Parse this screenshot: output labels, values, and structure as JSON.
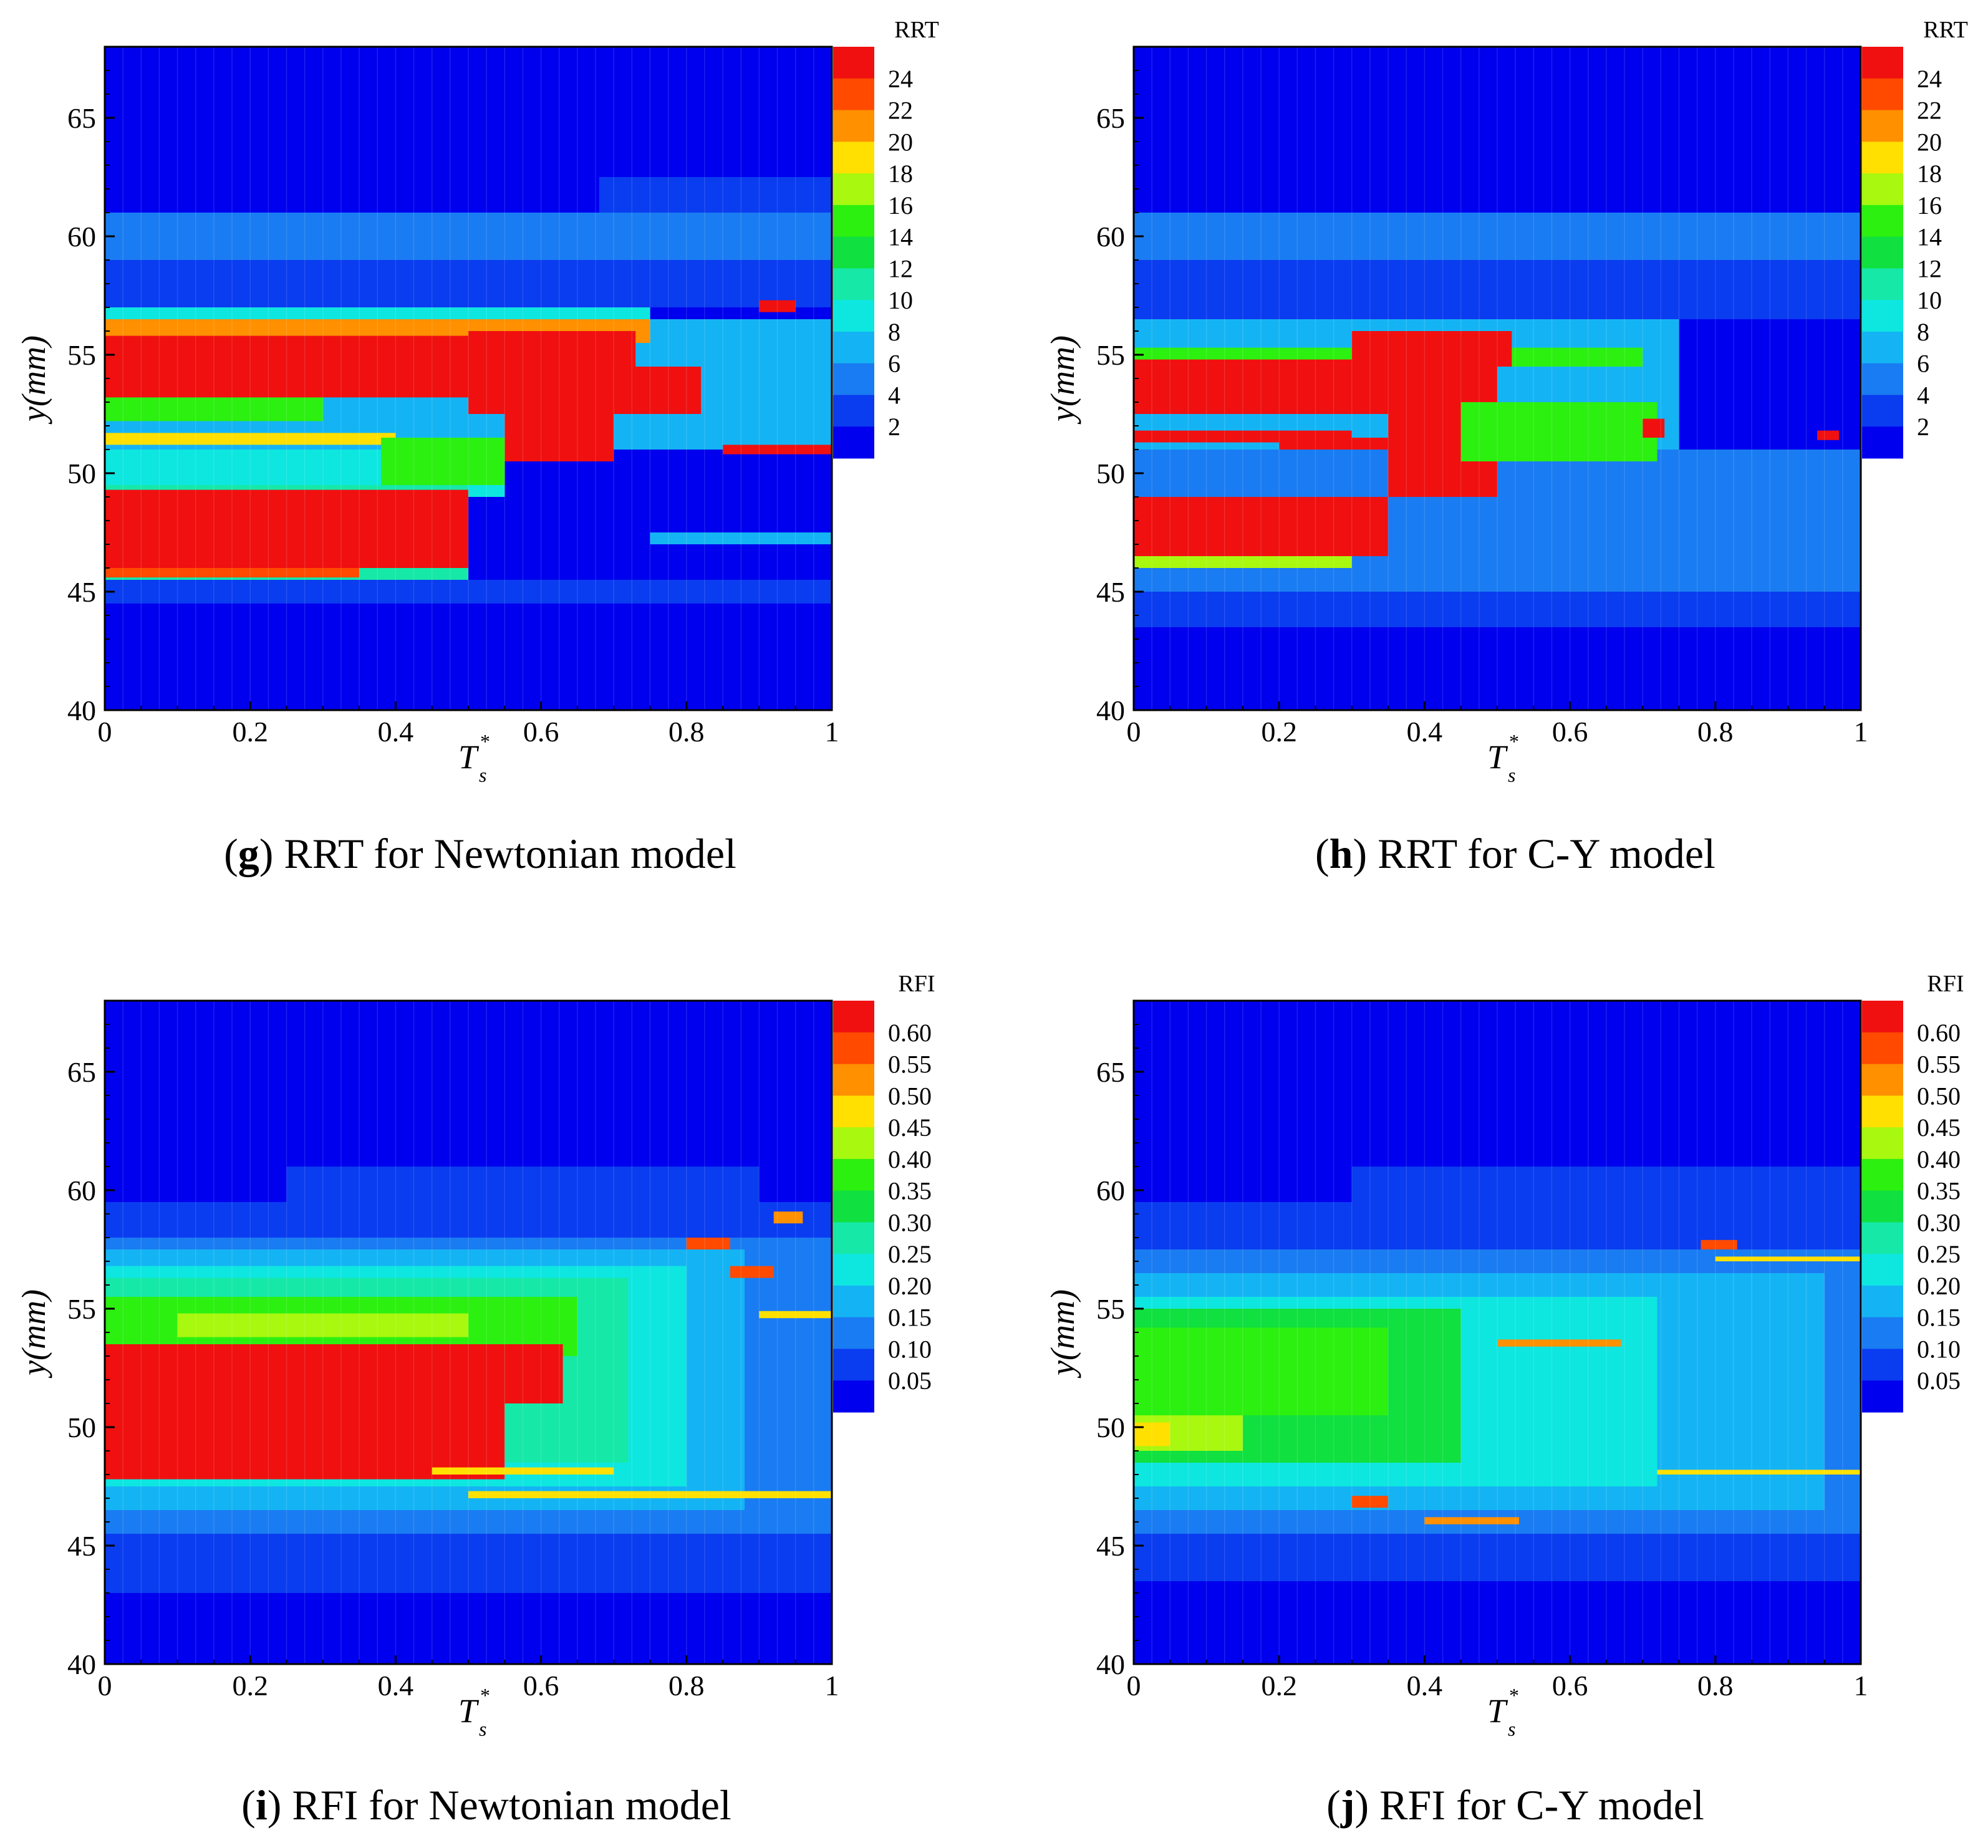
{
  "figure": {
    "panels": [
      {
        "id": "g",
        "caption_letter": "g",
        "caption_text": "RRT for Newtonian model",
        "colorbar_title": "RRT",
        "colorbar_labels": [
          "24",
          "22",
          "20",
          "18",
          "16",
          "14",
          "12",
          "10",
          "8",
          "6",
          "4",
          "2"
        ],
        "xlabel_main": "T",
        "xlabel_sup": "*",
        "xlabel_sub": "s",
        "ylabel": "y(mm)",
        "x_tick_labels": [
          "0",
          "0.2",
          "0.4",
          "0.6",
          "0.8",
          "1"
        ],
        "y_tick_labels": [
          "40",
          "45",
          "50",
          "55",
          "60",
          "65"
        ]
      },
      {
        "id": "h",
        "caption_letter": "h",
        "caption_text": "RRT for C-Y model",
        "colorbar_title": "RRT",
        "colorbar_labels": [
          "24",
          "22",
          "20",
          "18",
          "16",
          "14",
          "12",
          "10",
          "8",
          "6",
          "4",
          "2"
        ],
        "xlabel_main": "T",
        "xlabel_sup": "*",
        "xlabel_sub": "s",
        "ylabel": "y(mm)",
        "x_tick_labels": [
          "0",
          "0.2",
          "0.4",
          "0.6",
          "0.8",
          "1"
        ],
        "y_tick_labels": [
          "40",
          "45",
          "50",
          "55",
          "60",
          "65"
        ]
      },
      {
        "id": "i",
        "caption_letter": "i",
        "caption_text": "RFI for Newtonian model",
        "colorbar_title": "RFI",
        "colorbar_labels": [
          "0.60",
          "0.55",
          "0.50",
          "0.45",
          "0.40",
          "0.35",
          "0.30",
          "0.25",
          "0.20",
          "0.15",
          "0.10",
          "0.05"
        ],
        "xlabel_main": "T",
        "xlabel_sup": "*",
        "xlabel_sub": "s",
        "ylabel": "y(mm)",
        "x_tick_labels": [
          "0",
          "0.2",
          "0.4",
          "0.6",
          "0.8",
          "1"
        ],
        "y_tick_labels": [
          "40",
          "45",
          "50",
          "55",
          "60",
          "65"
        ]
      },
      {
        "id": "j",
        "caption_letter": "j",
        "caption_text": "RFI for C-Y model",
        "colorbar_title": "RFI",
        "colorbar_labels": [
          "0.60",
          "0.55",
          "0.50",
          "0.45",
          "0.40",
          "0.35",
          "0.30",
          "0.25",
          "0.20",
          "0.15",
          "0.10",
          "0.05"
        ],
        "xlabel_main": "T",
        "xlabel_sup": "*",
        "xlabel_sub": "s",
        "ylabel": "y(mm)",
        "x_tick_labels": [
          "0",
          "0.2",
          "0.4",
          "0.6",
          "0.8",
          "1"
        ],
        "y_tick_labels": [
          "40",
          "45",
          "50",
          "55",
          "60",
          "65"
        ]
      }
    ]
  },
  "colormap": [
    "#0000ee",
    "#0a3cf0",
    "#1a7cf2",
    "#14b4f4",
    "#0ee6e0",
    "#16e8a8",
    "#10e040",
    "#2cf010",
    "#a8f810",
    "#ffe000",
    "#ff9000",
    "#ff4a00",
    "#f01010"
  ],
  "chart_data": [
    {
      "panel": "g",
      "type": "heatmap",
      "title": "RRT for Newtonian model",
      "xlabel": "T*s",
      "ylabel": "y(mm)",
      "xlim": [
        0,
        1
      ],
      "ylim": [
        40,
        68
      ],
      "x_ticks": [
        0,
        0.2,
        0.4,
        0.6,
        0.8,
        1
      ],
      "y_ticks": [
        40,
        45,
        50,
        55,
        60,
        65
      ],
      "colorbar": {
        "title": "RRT",
        "levels": [
          2,
          4,
          6,
          8,
          10,
          12,
          14,
          16,
          18,
          20,
          22,
          24
        ]
      },
      "background_level": 0,
      "regions": [
        {
          "x0": 0,
          "x1": 1,
          "y0": 59,
          "y1": 61,
          "level": 2
        },
        {
          "x0": 0.68,
          "x1": 1,
          "y0": 61,
          "y1": 62.5,
          "level": 1
        },
        {
          "x0": 0,
          "x1": 1,
          "y0": 57,
          "y1": 59,
          "level": 1
        },
        {
          "x0": 0,
          "x1": 0.75,
          "y0": 56.2,
          "y1": 57,
          "level": 4
        },
        {
          "x0": 0,
          "x1": 1,
          "y0": 51,
          "y1": 56.5,
          "level": 3
        },
        {
          "x0": 0,
          "x1": 0.55,
          "y0": 49,
          "y1": 51,
          "level": 4
        },
        {
          "x0": 0,
          "x1": 0.5,
          "y0": 45.3,
          "y1": 49.5,
          "level": 5
        },
        {
          "x0": 0,
          "x1": 1,
          "y0": 44.5,
          "y1": 45.5,
          "level": 1
        },
        {
          "x0": 0,
          "x1": 0.3,
          "y0": 52.2,
          "y1": 53.2,
          "level": 7
        },
        {
          "x0": 0,
          "x1": 0.4,
          "y0": 51.2,
          "y1": 51.7,
          "level": 9
        },
        {
          "x0": 0,
          "x1": 0.75,
          "y0": 55.5,
          "y1": 56.5,
          "level": 10
        },
        {
          "x0": 0,
          "x1": 0.7,
          "y0": 53.2,
          "y1": 55.8,
          "level": 12
        },
        {
          "x0": 0.5,
          "x1": 0.73,
          "y0": 52.5,
          "y1": 56,
          "level": 12
        },
        {
          "x0": 0.55,
          "x1": 0.7,
          "y0": 50.5,
          "y1": 53.2,
          "level": 12
        },
        {
          "x0": 0.7,
          "x1": 0.82,
          "y0": 52.5,
          "y1": 54.5,
          "level": 12
        },
        {
          "x0": 0.38,
          "x1": 0.55,
          "y0": 49.5,
          "y1": 51.5,
          "level": 7
        },
        {
          "x0": 0,
          "x1": 0.5,
          "y0": 46,
          "y1": 49.3,
          "level": 12
        },
        {
          "x0": 0,
          "x1": 0.35,
          "y0": 45.6,
          "y1": 46,
          "level": 11
        },
        {
          "x0": 0.9,
          "x1": 0.95,
          "y0": 56.8,
          "y1": 57.3,
          "level": 12
        },
        {
          "x0": 0.85,
          "x1": 1,
          "y0": 50.8,
          "y1": 51.2,
          "level": 12
        },
        {
          "x0": 0.75,
          "x1": 1,
          "y0": 47,
          "y1": 47.5,
          "level": 3
        }
      ]
    },
    {
      "panel": "h",
      "type": "heatmap",
      "title": "RRT for C-Y model",
      "xlabel": "T*s",
      "ylabel": "y(mm)",
      "xlim": [
        0,
        1
      ],
      "ylim": [
        40,
        68
      ],
      "x_ticks": [
        0,
        0.2,
        0.4,
        0.6,
        0.8,
        1
      ],
      "y_ticks": [
        40,
        45,
        50,
        55,
        60,
        65
      ],
      "colorbar": {
        "title": "RRT",
        "levels": [
          2,
          4,
          6,
          8,
          10,
          12,
          14,
          16,
          18,
          20,
          22,
          24
        ]
      },
      "background_level": 0,
      "regions": [
        {
          "x0": 0,
          "x1": 1,
          "y0": 59,
          "y1": 61,
          "level": 2
        },
        {
          "x0": 0,
          "x1": 1,
          "y0": 56.5,
          "y1": 59,
          "level": 1
        },
        {
          "x0": 0,
          "x1": 0.75,
          "y0": 51,
          "y1": 56.5,
          "level": 3
        },
        {
          "x0": 0,
          "x1": 1,
          "y0": 45,
          "y1": 51,
          "level": 2
        },
        {
          "x0": 0,
          "x1": 1,
          "y0": 43.5,
          "y1": 45,
          "level": 1
        },
        {
          "x0": 0,
          "x1": 0.7,
          "y0": 54.5,
          "y1": 55.3,
          "level": 7
        },
        {
          "x0": 0,
          "x1": 0.5,
          "y0": 52.5,
          "y1": 54.8,
          "level": 12
        },
        {
          "x0": 0.3,
          "x1": 0.52,
          "y0": 54.5,
          "y1": 56,
          "level": 12
        },
        {
          "x0": 0.35,
          "x1": 0.5,
          "y0": 49,
          "y1": 53,
          "level": 12
        },
        {
          "x0": 0.45,
          "x1": 0.72,
          "y0": 50.5,
          "y1": 53,
          "level": 7
        },
        {
          "x0": 0.2,
          "x1": 0.35,
          "y0": 51,
          "y1": 51.5,
          "level": 12
        },
        {
          "x0": 0,
          "x1": 0.3,
          "y0": 51.3,
          "y1": 51.8,
          "level": 12
        },
        {
          "x0": 0,
          "x1": 0.35,
          "y0": 46.5,
          "y1": 49,
          "level": 12
        },
        {
          "x0": 0,
          "x1": 0.3,
          "y0": 46,
          "y1": 46.5,
          "level": 8
        },
        {
          "x0": 0.7,
          "x1": 0.73,
          "y0": 51.5,
          "y1": 52.3,
          "level": 12
        },
        {
          "x0": 0.94,
          "x1": 0.97,
          "y0": 51.4,
          "y1": 51.8,
          "level": 12
        }
      ]
    },
    {
      "panel": "i",
      "type": "heatmap",
      "title": "RFI for Newtonian model",
      "xlabel": "T*s",
      "ylabel": "y(mm)",
      "xlim": [
        0,
        1
      ],
      "ylim": [
        40,
        68
      ],
      "x_ticks": [
        0,
        0.2,
        0.4,
        0.6,
        0.8,
        1
      ],
      "y_ticks": [
        40,
        45,
        50,
        55,
        60,
        65
      ],
      "colorbar": {
        "title": "RFI",
        "levels": [
          0.05,
          0.1,
          0.15,
          0.2,
          0.25,
          0.3,
          0.35,
          0.4,
          0.45,
          0.5,
          0.55,
          0.6
        ]
      },
      "background_level": 0,
      "regions": [
        {
          "x0": 0,
          "x1": 1,
          "y0": 43,
          "y1": 59.5,
          "level": 1
        },
        {
          "x0": 0.25,
          "x1": 0.9,
          "y0": 59,
          "y1": 61,
          "level": 1
        },
        {
          "x0": 0,
          "x1": 1,
          "y0": 45.5,
          "y1": 58,
          "level": 2
        },
        {
          "x0": 0,
          "x1": 0.88,
          "y0": 46.5,
          "y1": 57.5,
          "level": 3
        },
        {
          "x0": 0,
          "x1": 0.8,
          "y0": 47.5,
          "y1": 56.8,
          "level": 4
        },
        {
          "x0": 0,
          "x1": 0.72,
          "y0": 48.5,
          "y1": 56.3,
          "level": 5
        },
        {
          "x0": 0,
          "x1": 0.65,
          "y0": 53,
          "y1": 55.5,
          "level": 7
        },
        {
          "x0": 0.1,
          "x1": 0.5,
          "y0": 53.8,
          "y1": 54.8,
          "level": 8
        },
        {
          "x0": 0,
          "x1": 0.55,
          "y0": 47.8,
          "y1": 53.5,
          "level": 12
        },
        {
          "x0": 0.55,
          "x1": 0.63,
          "y0": 51,
          "y1": 53.5,
          "level": 12
        },
        {
          "x0": 0.45,
          "x1": 0.7,
          "y0": 48,
          "y1": 48.3,
          "level": 9
        },
        {
          "x0": 0.5,
          "x1": 1,
          "y0": 47,
          "y1": 47.3,
          "level": 9
        },
        {
          "x0": 0.8,
          "x1": 0.86,
          "y0": 57.5,
          "y1": 58,
          "level": 11
        },
        {
          "x0": 0.86,
          "x1": 0.92,
          "y0": 56.3,
          "y1": 56.8,
          "level": 11
        },
        {
          "x0": 0.92,
          "x1": 0.96,
          "y0": 58.6,
          "y1": 59.1,
          "level": 10
        },
        {
          "x0": 0.9,
          "x1": 1,
          "y0": 54.6,
          "y1": 54.9,
          "level": 9
        }
      ]
    },
    {
      "panel": "j",
      "type": "heatmap",
      "title": "RFI for C-Y model",
      "xlabel": "T*s",
      "ylabel": "y(mm)",
      "xlim": [
        0,
        1
      ],
      "ylim": [
        40,
        68
      ],
      "x_ticks": [
        0,
        0.2,
        0.4,
        0.6,
        0.8,
        1
      ],
      "y_ticks": [
        40,
        45,
        50,
        55,
        60,
        65
      ],
      "colorbar": {
        "title": "RFI",
        "levels": [
          0.05,
          0.1,
          0.15,
          0.2,
          0.25,
          0.3,
          0.35,
          0.4,
          0.45,
          0.5,
          0.55,
          0.6
        ]
      },
      "background_level": 0,
      "regions": [
        {
          "x0": 0,
          "x1": 1,
          "y0": 43.5,
          "y1": 59.5,
          "level": 1
        },
        {
          "x0": 0.3,
          "x1": 1,
          "y0": 59,
          "y1": 61,
          "level": 1
        },
        {
          "x0": 0,
          "x1": 1,
          "y0": 45.5,
          "y1": 57.5,
          "level": 2
        },
        {
          "x0": 0,
          "x1": 0.95,
          "y0": 46.5,
          "y1": 56.5,
          "level": 3
        },
        {
          "x0": 0,
          "x1": 0.72,
          "y0": 47.5,
          "y1": 55.5,
          "level": 4
        },
        {
          "x0": 0,
          "x1": 0.45,
          "y0": 48.5,
          "y1": 55,
          "level": 6
        },
        {
          "x0": 0,
          "x1": 0.35,
          "y0": 50.5,
          "y1": 54.2,
          "level": 7
        },
        {
          "x0": 0,
          "x1": 0.15,
          "y0": 49,
          "y1": 50.5,
          "level": 8
        },
        {
          "x0": 0,
          "x1": 0.05,
          "y0": 49.2,
          "y1": 50.2,
          "level": 9
        },
        {
          "x0": 0.5,
          "x1": 0.67,
          "y0": 53.4,
          "y1": 53.7,
          "level": 10
        },
        {
          "x0": 0.4,
          "x1": 0.53,
          "y0": 45.9,
          "y1": 46.2,
          "level": 10
        },
        {
          "x0": 0.78,
          "x1": 0.83,
          "y0": 57.5,
          "y1": 57.9,
          "level": 11
        },
        {
          "x0": 0.8,
          "x1": 1,
          "y0": 57,
          "y1": 57.2,
          "level": 9
        },
        {
          "x0": 0.72,
          "x1": 1,
          "y0": 48,
          "y1": 48.2,
          "level": 9
        },
        {
          "x0": 0.3,
          "x1": 0.35,
          "y0": 46.6,
          "y1": 47.1,
          "level": 11
        }
      ]
    }
  ]
}
